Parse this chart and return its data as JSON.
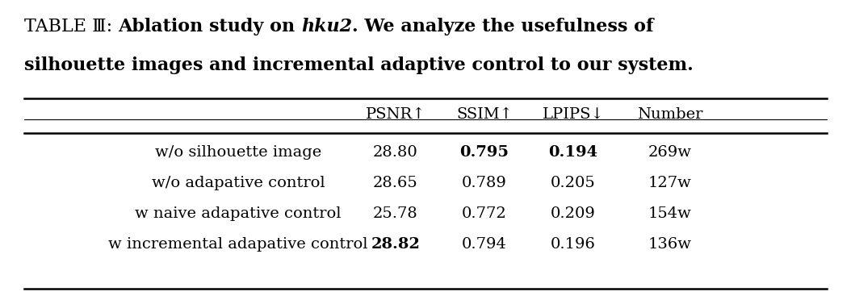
{
  "rows": [
    {
      "label": "w/o silhouette image",
      "psnr": "28.80",
      "ssim": "0.795",
      "lpips": "0.194",
      "number": "269w",
      "bold_psnr": false,
      "bold_ssim": true,
      "bold_lpips": true,
      "bold_number": false
    },
    {
      "label": "w/o adapative control",
      "psnr": "28.65",
      "ssim": "0.789",
      "lpips": "0.205",
      "number": "127w",
      "bold_psnr": false,
      "bold_ssim": false,
      "bold_lpips": false,
      "bold_number": false
    },
    {
      "label": "w naive adapative control",
      "psnr": "25.78",
      "ssim": "0.772",
      "lpips": "0.209",
      "number": "154w",
      "bold_psnr": false,
      "bold_ssim": false,
      "bold_lpips": false,
      "bold_number": false
    },
    {
      "label": "w incremental adapative control",
      "psnr": "28.82",
      "ssim": "0.794",
      "lpips": "0.196",
      "number": "136w",
      "bold_psnr": true,
      "bold_ssim": false,
      "bold_lpips": false,
      "bold_number": false
    }
  ],
  "col_headers": [
    "PSNR↑",
    "SSIM↑",
    "LPIPS↓",
    "Number"
  ],
  "bg_color": "#ffffff",
  "text_color": "#000000",
  "title_fs": 16,
  "table_fs": 14
}
